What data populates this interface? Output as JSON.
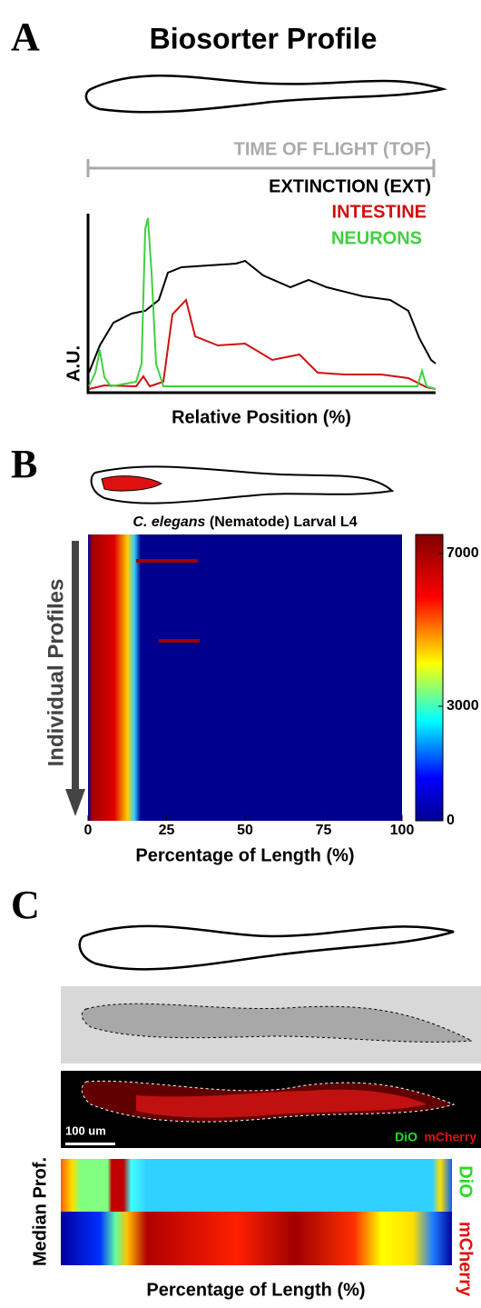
{
  "panel_a": {
    "label": "A",
    "title": "Biosorter Profile",
    "legend": [
      "TIME OF FLIGHT (TOF)",
      "EXTINCTION (EXT)",
      "INTESTINE",
      "NEURONS"
    ],
    "y_label": "A.U.",
    "x_label": "Relative Position (%)"
  },
  "panel_b": {
    "label": "B",
    "title_species": "C. elegans",
    "title_rest": " (Nematode) Larval L4",
    "y_label": "Individual Profiles",
    "x_label": "Percentage of Length (%)",
    "xlim": [
      0,
      100
    ],
    "xticks": [
      0,
      25,
      50,
      75,
      100
    ],
    "colorbar_lim": [
      0,
      7500
    ],
    "colorbar_ticks": [
      0,
      3000,
      7000
    ]
  },
  "panel_c": {
    "label": "C",
    "scale_bar": "100 um",
    "channels": [
      "DiO",
      "mCherry"
    ],
    "y_label": "Median Prof.",
    "x_label": "Percentage of Length (%)"
  }
}
